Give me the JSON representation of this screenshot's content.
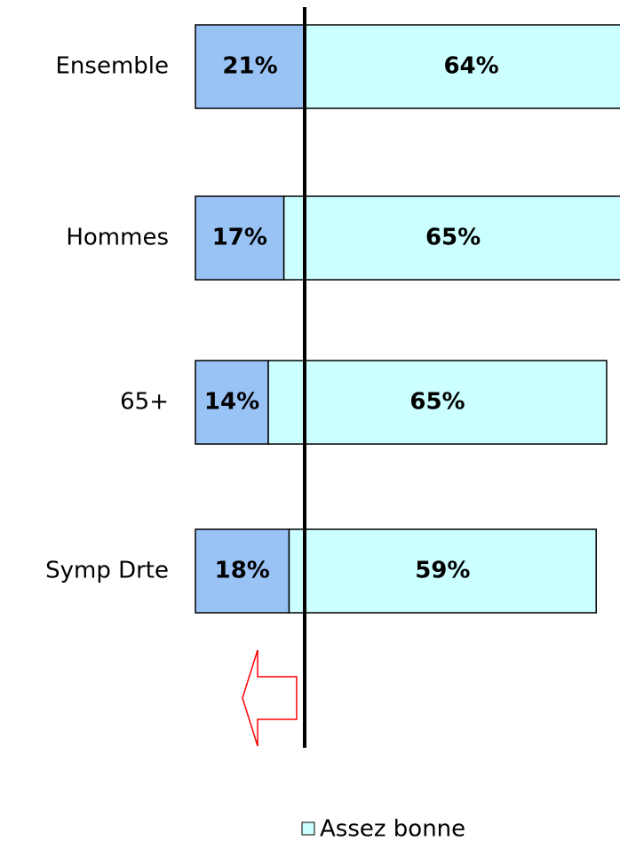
{
  "chart_data": {
    "type": "stacked-bar-horizontal",
    "categories": [
      "Ensemble",
      "Hommes",
      "65+",
      "Symp Drte"
    ],
    "series": [
      {
        "color": "#99c2f5",
        "values": [
          21,
          17,
          14,
          18
        ],
        "value_labels": [
          "21%",
          "17%",
          "14%",
          "18%"
        ]
      },
      {
        "name": "Assez bonne",
        "color": "#ccffff",
        "values": [
          64,
          65,
          65,
          59
        ],
        "value_labels": [
          "64%",
          "65%",
          "65%",
          "59%"
        ]
      }
    ]
  }
}
